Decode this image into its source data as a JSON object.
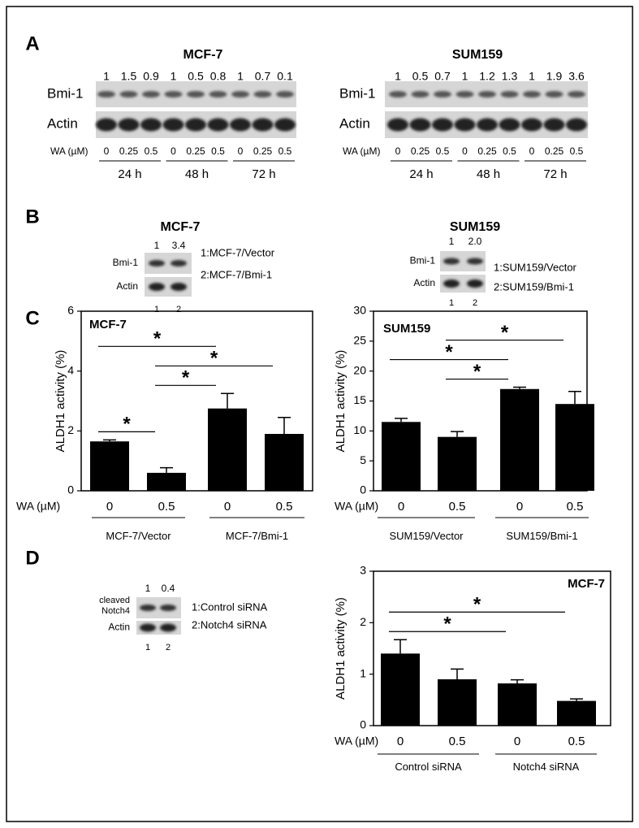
{
  "panel_labels": [
    "A",
    "B",
    "C",
    "D"
  ],
  "panel_a": [
    {
      "title": "MCF-7",
      "quantification": [
        "1",
        "1.5",
        "0.9",
        "1",
        "0.5",
        "0.8",
        "1",
        "0.7",
        "0.1"
      ],
      "rows": [
        "Bmi-1",
        "Actin"
      ],
      "dose_label": "WA (µM)",
      "doses": [
        "0",
        "0.25",
        "0.5",
        "0",
        "0.25",
        "0.5",
        "0",
        "0.25",
        "0.5"
      ],
      "times": [
        "24 h",
        "48 h",
        "72 h"
      ]
    },
    {
      "title": "SUM159",
      "quantification": [
        "1",
        "0.5",
        "0.7",
        "1",
        "1.2",
        "1.3",
        "1",
        "1.9",
        "3.6"
      ],
      "rows": [
        "Bmi-1",
        "Actin"
      ],
      "dose_label": "WA (µM)",
      "doses": [
        "0",
        "0.25",
        "0.5",
        "0",
        "0.25",
        "0.5",
        "0",
        "0.25",
        "0.5"
      ],
      "times": [
        "24 h",
        "48 h",
        "72 h"
      ]
    }
  ],
  "panel_b": [
    {
      "title": "MCF-7",
      "quantification": [
        "1",
        "3.4"
      ],
      "rows": [
        "Bmi-1",
        "Actin"
      ],
      "lanes": [
        "1",
        "2"
      ],
      "legend": [
        "1:MCF-7/Vector",
        "2:MCF-7/Bmi-1"
      ]
    },
    {
      "title": "SUM159",
      "quantification": [
        "1",
        "2.0"
      ],
      "rows": [
        "Bmi-1",
        "Actin"
      ],
      "lanes": [
        "1",
        "2"
      ],
      "legend": [
        "1:SUM159/Vector",
        "2:SUM159/Bmi-1"
      ]
    }
  ],
  "panel_d_blot": {
    "quantification": [
      "1",
      "0.4"
    ],
    "rows": [
      "cleaved Notch4",
      "Actin"
    ],
    "lanes": [
      "1",
      "2"
    ],
    "legend": [
      "1:Control siRNA",
      "2:Notch4 siRNA"
    ]
  },
  "chart_data": [
    {
      "type": "bar",
      "title": "MCF-7",
      "y_label": "ALDH1 activity (%)",
      "x_label": "WA (µM)",
      "categories": [
        "0",
        "0.5",
        "0",
        "0.5"
      ],
      "groups": [
        "MCF-7/Vector",
        "MCF-7/Bmi-1"
      ],
      "values": [
        1.65,
        0.6,
        2.75,
        1.9
      ],
      "errors": [
        0.05,
        0.17,
        0.5,
        0.55
      ],
      "color": "#000000",
      "ylim": [
        0,
        6
      ],
      "yticks": [
        0,
        2,
        4,
        6
      ],
      "significance": [
        {
          "pair": [
            0,
            1
          ],
          "label": "*"
        },
        {
          "pair": [
            1,
            2
          ],
          "label": "*"
        },
        {
          "pair": [
            1,
            3
          ],
          "label": "*"
        },
        {
          "pair": [
            0,
            2
          ],
          "label": "*"
        }
      ]
    },
    {
      "type": "bar",
      "title": "SUM159",
      "y_label": "ALDH1 activity (%)",
      "x_label": "WA (µM)",
      "categories": [
        "0",
        "0.5",
        "0",
        "0.5"
      ],
      "groups": [
        "SUM159/Vector",
        "SUM159/Bmi-1"
      ],
      "values": [
        11.5,
        9,
        17,
        14.5
      ],
      "errors": [
        0.6,
        0.9,
        0.3,
        2.1
      ],
      "color": "#000000",
      "ylim": [
        0,
        30
      ],
      "yticks": [
        0,
        5,
        10,
        15,
        20,
        25,
        30
      ],
      "significance": [
        {
          "pair": [
            1,
            2
          ],
          "label": "*"
        },
        {
          "pair": [
            0,
            2
          ],
          "label": "*"
        },
        {
          "pair": [
            1,
            3
          ],
          "label": "*"
        }
      ]
    },
    {
      "type": "bar",
      "title": "MCF-7",
      "y_label": "ALDH1 activity (%)",
      "x_label": "WA (µM)",
      "categories": [
        "0",
        "0.5",
        "0",
        "0.5"
      ],
      "groups": [
        "Control siRNA",
        "Notch4 siRNA"
      ],
      "values": [
        1.4,
        0.9,
        0.82,
        0.48
      ],
      "errors": [
        0.27,
        0.2,
        0.07,
        0.04
      ],
      "color": "#000000",
      "ylim": [
        0,
        3
      ],
      "yticks": [
        0,
        1,
        2,
        3
      ],
      "significance": [
        {
          "pair": [
            0,
            2
          ],
          "label": "*"
        },
        {
          "pair": [
            0,
            3
          ],
          "label": "*"
        }
      ]
    }
  ]
}
